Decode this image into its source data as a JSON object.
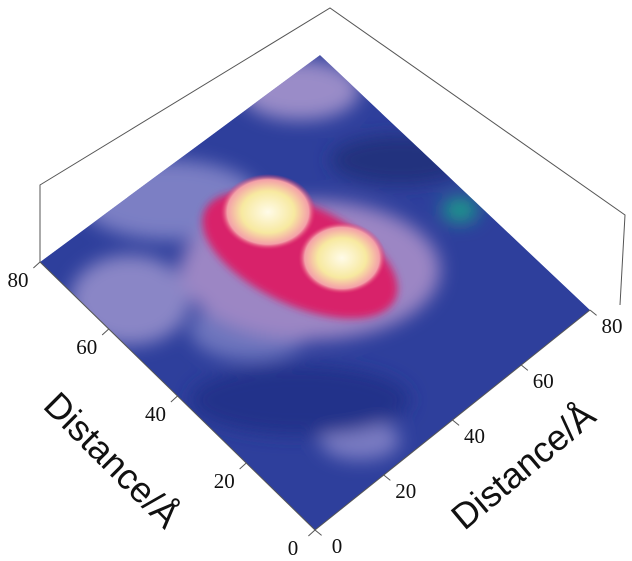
{
  "chart_data": {
    "type": "surface",
    "xlabel": "Distance/Å",
    "ylabel": "Distance/Å",
    "xlim": [
      0,
      80
    ],
    "xticks": [
      0,
      20,
      40,
      60,
      80
    ],
    "ylim": [
      0,
      80
    ],
    "yticks": [
      0,
      20,
      40,
      60,
      80
    ]
  }
}
